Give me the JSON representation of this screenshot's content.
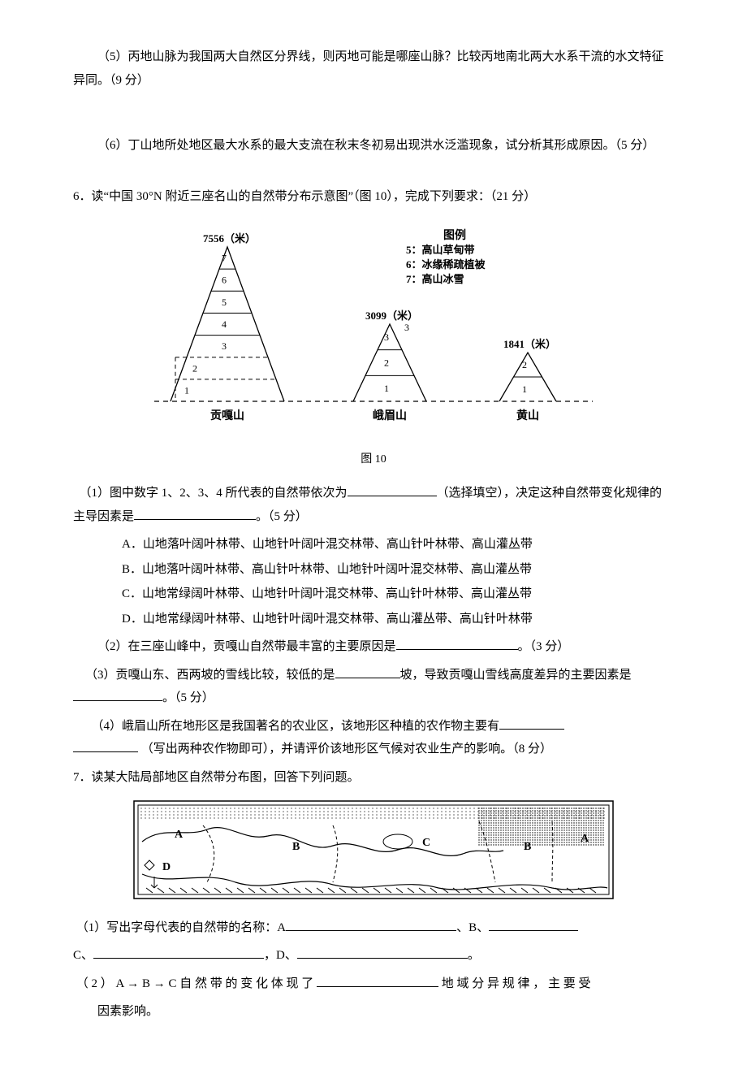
{
  "q5": {
    "p5": "（5）丙地山脉为我国两大自然区分界线，则丙地可能是哪座山脉？比较丙地南北两大水系干流的水文特征异同。（9 分）",
    "p6": "（6）丁山地所处地区最大水系的最大支流在秋末冬初易出现洪水泛滥现象，试分析其形成原因。（5 分）"
  },
  "q6": {
    "stem": "6．读“中国 30°N 附近三座名山的自然带分布示意图”（图 10），完成下列要求：（21 分）",
    "caption": "图 10",
    "figure": {
      "legend_title": "图例",
      "legend_items": [
        "5：高山草甸带",
        "6：冰缘稀疏植被",
        "7：高山冰雪"
      ],
      "mountains": [
        {
          "name": "贡嘎山",
          "height_label": "7556（米）",
          "zones": [
            "7",
            "6",
            "5",
            "4",
            "3",
            "2",
            "1"
          ]
        },
        {
          "name": "峨眉山",
          "height_label": "3099（米）",
          "zones": [
            "3",
            "2",
            "1"
          ]
        },
        {
          "name": "黄山",
          "height_label": "1841（米）",
          "zones": [
            "2",
            "1"
          ]
        }
      ],
      "colors": {
        "stroke": "#000000",
        "bg": "#ffffff"
      },
      "font_size": 13
    },
    "p1a": "（1）图中数字 1、2、3、4 所代表的自然带依次为",
    "p1b": "（选择填空），决定这种自然带变化规律的主导因素是",
    "p1c": "。（5 分）",
    "options": {
      "A": "A．山地落叶阔叶林带、山地针叶阔叶混交林带、高山针叶林带、高山灌丛带",
      "B": "B．山地落叶阔叶林带、高山针叶林带、山地针叶阔叶混交林带、高山灌丛带",
      "C": "C．山地常绿阔叶林带、山地针叶阔叶混交林带、高山针叶林带、高山灌丛带",
      "D": "D．山地常绿阔叶林带、山地针叶阔叶混交林带、高山灌丛带、高山针叶林带"
    },
    "p2a": "（2）在三座山峰中，贡嘎山自然带最丰富的主要原因是",
    "p2b": "。（3 分）",
    "p3a": "（3）贡嘎山东、西两坡的雪线比较，较低的是",
    "p3b": "坡，导致贡嘎山雪线高度差异的主要因素是",
    "p3c": "。（5 分）",
    "p4a": "（4）峨眉山所在地形区是我国著名的农业区，该地形区种植的农作物主要有",
    "p4b": "（写出两种农作物即可），并请评价该地形区气候对农业生产的影响。（8 分）"
  },
  "q7": {
    "stem": "7．读某大陆局部地区自然带分布图，回答下列问题。",
    "map": {
      "labels": [
        "A",
        "B",
        "C",
        "B",
        "A",
        "D"
      ],
      "border_color": "#000000",
      "water_pattern_color": "#000000",
      "land_color": "#ffffff"
    },
    "p1a": "（1）写出字母代表的自然带的名称：A",
    "p1b": "、B、",
    "p1c": "C、",
    "p1d": "，D、",
    "p1e": "。",
    "p2a": "（ 2 ） A → B → C 自 然 带 的 变 化 体 现 了 ",
    "p2b": " 地 域 分 异 规 律 ， 主 要 受",
    "p2c": "因素影响。"
  }
}
